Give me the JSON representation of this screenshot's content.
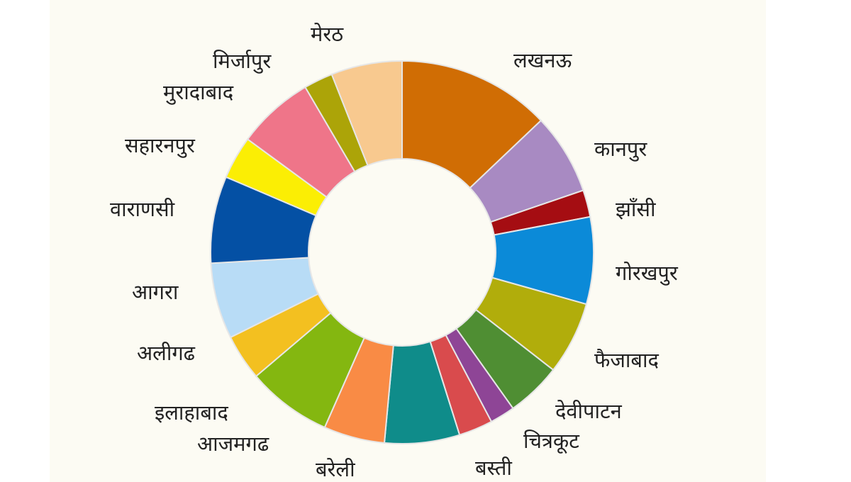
{
  "chart_data": {
    "type": "pie",
    "donut": true,
    "categories": [
      "लखनऊ",
      "कानपुर",
      "झाँसी",
      "गोरखपुर",
      "फैजाबाद",
      "देवीपाटन",
      "चित्रकूट",
      "बस्ती",
      "बरेली",
      "आजमगढ",
      "इलाहाबाद",
      "अलीगढ",
      "आगरा",
      "वाराणसी",
      "सहारनपुर",
      "मुरादाबाद",
      "मिर्जापुर",
      "मेरठ"
    ],
    "values": [
      15.3,
      8.1,
      2.7,
      8.7,
      7.3,
      5.5,
      2.5,
      3.4,
      7.5,
      6.1,
      8.5,
      4.6,
      7.6,
      8.7,
      4.3,
      7.7,
      2.9,
      7.1
    ],
    "colors": [
      "#d06d04",
      "#a88ac2",
      "#a50d12",
      "#0b8ad8",
      "#b1ad0b",
      "#4f8e33",
      "#8e4596",
      "#d94b4d",
      "#0f8c8a",
      "#f98b45",
      "#84b710",
      "#f3c020",
      "#b8dcf6",
      "#0450a4",
      "#fbee04",
      "#ef7589",
      "#aca408",
      "#f8c98f"
    ],
    "legend": "labels-around",
    "title": ""
  }
}
